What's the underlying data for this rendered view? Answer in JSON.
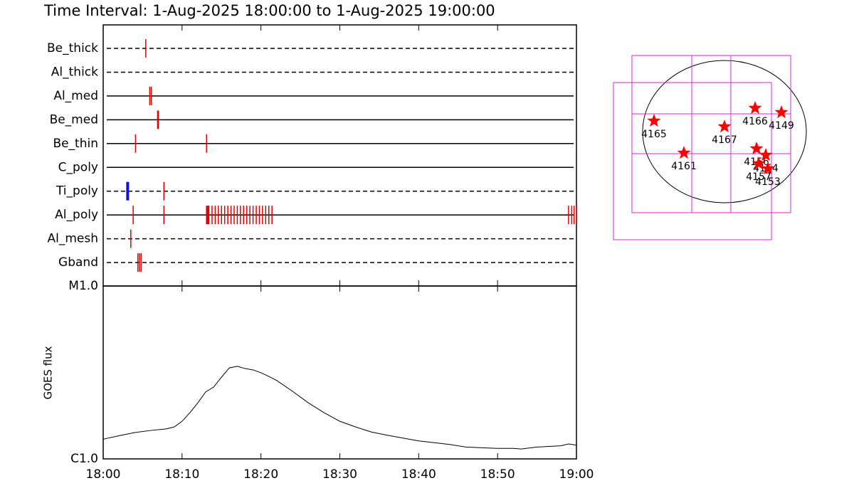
{
  "chart_data": [
    {
      "type": "timeline",
      "title": "Time Interval:  1-Aug-2025 18:00:00 to  1-Aug-2025 19:00:00",
      "xlim": [
        0,
        60
      ],
      "rows": [
        {
          "name": "Be_thick",
          "dashed": true,
          "color": "#e00000",
          "values": [
            5.4
          ]
        },
        {
          "name": "Al_thick",
          "dashed": true,
          "color": "#e00000",
          "values": []
        },
        {
          "name": "Al_med",
          "dashed": false,
          "color": "#e00000",
          "values": [
            5.9,
            6.1
          ]
        },
        {
          "name": "Be_med",
          "dashed": false,
          "color": "#e00000",
          "values": [
            6.9,
            7.0
          ]
        },
        {
          "name": "Be_thin",
          "dashed": false,
          "color": "#e00000",
          "values": [
            4.1,
            13.1
          ]
        },
        {
          "name": "C_poly",
          "dashed": false,
          "color": "#e00000",
          "values": []
        },
        {
          "name": "Ti_poly",
          "dashed": true,
          "color": "#e00000",
          "colors": [
            "#1010e0",
            "#e00000"
          ],
          "values": [
            3.1,
            7.7
          ]
        },
        {
          "name": "Al_poly",
          "dashed": false,
          "color": "#e00000",
          "values": [
            3.8,
            7.7,
            13.1,
            13.2,
            13.3,
            13.4,
            13.8,
            14.2,
            14.6,
            15.0,
            15.4,
            15.8,
            16.2,
            16.6,
            17.0,
            17.4,
            17.8,
            18.2,
            18.6,
            19.0,
            19.4,
            19.8,
            20.2,
            20.6,
            21.0,
            21.4,
            59.0,
            59.4,
            59.7,
            60.0
          ]
        },
        {
          "name": "Al_mesh",
          "dashed": true,
          "color": "#e00000",
          "values": [
            3.5
          ]
        },
        {
          "name": "Gband",
          "dashed": true,
          "color": "#e00000",
          "values": [
            4.4,
            4.6,
            4.8
          ]
        }
      ]
    },
    {
      "type": "line",
      "y_label": "GOES flux",
      "log_y": true,
      "color": "#000000",
      "x": [
        0,
        2,
        4,
        6,
        8,
        9,
        10,
        11,
        12,
        13,
        14,
        15,
        16,
        17,
        18,
        19,
        20,
        21,
        22,
        24,
        26,
        28,
        30,
        32,
        34,
        36,
        38,
        40,
        42,
        44,
        46,
        48,
        50,
        52,
        53,
        55,
        58,
        59,
        60
      ],
      "values": [
        1.3e-06,
        1.36e-06,
        1.42e-06,
        1.46e-06,
        1.49e-06,
        1.53e-06,
        1.65e-06,
        1.85e-06,
        2.11e-06,
        2.44e-06,
        2.6e-06,
        2.97e-06,
        3.36e-06,
        3.43e-06,
        3.33e-06,
        3.27e-06,
        3.15e-06,
        3e-06,
        2.84e-06,
        2.46e-06,
        2.11e-06,
        1.85e-06,
        1.65e-06,
        1.53e-06,
        1.43e-06,
        1.37e-06,
        1.32e-06,
        1.27e-06,
        1.24e-06,
        1.21e-06,
        1.17e-06,
        1.16e-06,
        1.15e-06,
        1.15e-06,
        1.14e-06,
        1.17e-06,
        1.19e-06,
        1.22e-06,
        1.2e-06
      ],
      "xlim": [
        0,
        60
      ],
      "xticks": [
        {
          "value": 0,
          "label": "18:00"
        },
        {
          "value": 10,
          "label": "18:10"
        },
        {
          "value": 20,
          "label": "18:20"
        },
        {
          "value": 30,
          "label": "18:30"
        },
        {
          "value": 40,
          "label": "18:40"
        },
        {
          "value": 50,
          "label": "18:50"
        },
        {
          "value": 60,
          "label": "19:00"
        }
      ],
      "ylim": [
        1e-06,
        1e-05
      ],
      "yticks": [
        {
          "value": 1e-06,
          "label": "C1.0"
        },
        {
          "value": 1e-05,
          "label": "M1.0"
        }
      ]
    },
    {
      "type": "scatter",
      "color": "#ff0000",
      "fov_color": "#e020e0",
      "labels": [
        "4165",
        "4161",
        "4167",
        "4166",
        "4149",
        "4156",
        "4154",
        "4157",
        "4153"
      ],
      "x": [
        -827,
        -476,
        0,
        359,
        668,
        376,
        484,
        401,
        509
      ],
      "values": [
        144,
        -288,
        67,
        317,
        259,
        -230,
        -317,
        -432,
        -499
      ],
      "fov": [
        {
          "xlim": [
            -1086,
            777
          ],
          "ylim": [
            -1094,
            1027
          ],
          "xgrid": [
            -384,
            75
          ],
          "ygrid": [
            -298,
            240
          ]
        },
        {
          "xlim": [
            -1303,
            551
          ],
          "ylim": [
            -1459,
            662
          ]
        }
      ]
    }
  ]
}
